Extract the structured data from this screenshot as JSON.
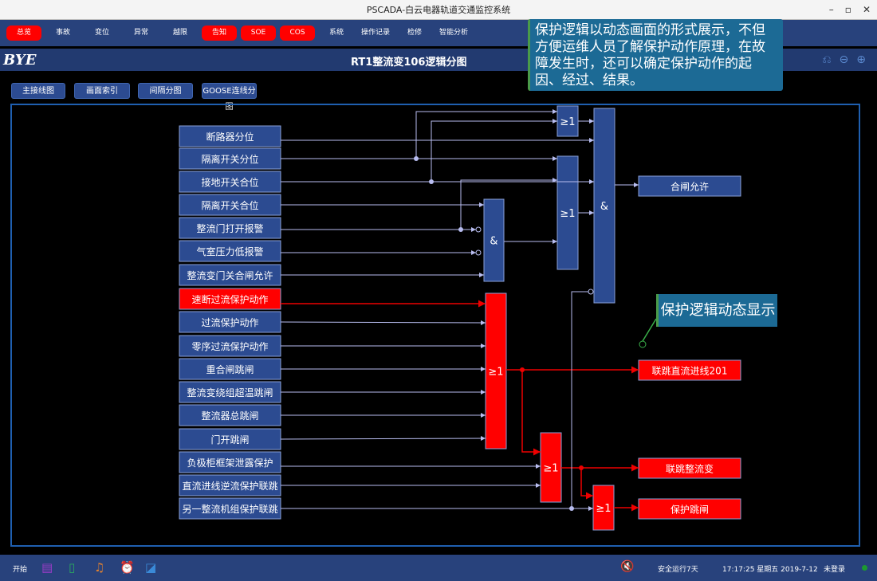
{
  "window": {
    "title": "PSCADA-白云电器轨道交通监控系统"
  },
  "nav": [
    {
      "label": "总览",
      "alert": true
    },
    {
      "label": "事故",
      "alert": false
    },
    {
      "label": "变位",
      "alert": false
    },
    {
      "label": "异常",
      "alert": false
    },
    {
      "label": "越限",
      "alert": false
    },
    {
      "label": "告知",
      "alert": true
    },
    {
      "label": "SOE",
      "alert": true
    },
    {
      "label": "COS",
      "alert": true
    },
    {
      "label": "系统",
      "alert": false
    },
    {
      "label": "操作记录",
      "alert": false
    },
    {
      "label": "检修",
      "alert": false
    },
    {
      "label": "智能分析",
      "alert": false
    }
  ],
  "header": {
    "logo": "BYE",
    "title": "RT1整流变106逻辑分图"
  },
  "subnav": [
    "主接线图",
    "画面索引",
    "间隔分图",
    "GOOSE连线分图"
  ],
  "note": "保护逻辑以动态画面的形式展示，不但方便运维人员了解保护动作原理，在故障发生时，还可以确定保护动作的起因、经过、结果。",
  "callout": "保护逻辑动态显示",
  "inputs": [
    {
      "label": "断路器分位",
      "active": false
    },
    {
      "label": "隔离开关分位",
      "active": false
    },
    {
      "label": "接地开关合位",
      "active": false
    },
    {
      "label": "隔离开关合位",
      "active": false
    },
    {
      "label": "整流门打开报警",
      "active": false
    },
    {
      "label": "气室压力低报警",
      "active": false
    },
    {
      "label": "整流变门关合闸允许",
      "active": false
    },
    {
      "label": "速断过流保护动作",
      "active": true
    },
    {
      "label": "过流保护动作",
      "active": false
    },
    {
      "label": "零序过流保护动作",
      "active": false
    },
    {
      "label": "重合闸跳闸",
      "active": false
    },
    {
      "label": "整流变绕组超温跳闸",
      "active": false
    },
    {
      "label": "整流器总跳闸",
      "active": false
    },
    {
      "label": "门开跳闸",
      "active": false
    },
    {
      "label": "负极柜框架泄露保护",
      "active": false
    },
    {
      "label": "直流进线逆流保护联跳",
      "active": false
    },
    {
      "label": "另一整流机组保护联跳",
      "active": false
    }
  ],
  "gates": {
    "or": "≥1",
    "and": "&"
  },
  "outputs": [
    {
      "label": "合闸允许",
      "active": false
    },
    {
      "label": "联跳直流进线201",
      "active": true
    },
    {
      "label": "联跳整流变",
      "active": true
    },
    {
      "label": "保护跳闸",
      "active": true
    }
  ],
  "taskbar": {
    "start": "开始",
    "status": "安全运行7天",
    "time": "17:17:25 星期五 2019-7-12",
    "user": "未登录"
  },
  "colors": {
    "active": "#ff0000",
    "normal": "#2c4b91",
    "line": "#b8bdf0"
  }
}
